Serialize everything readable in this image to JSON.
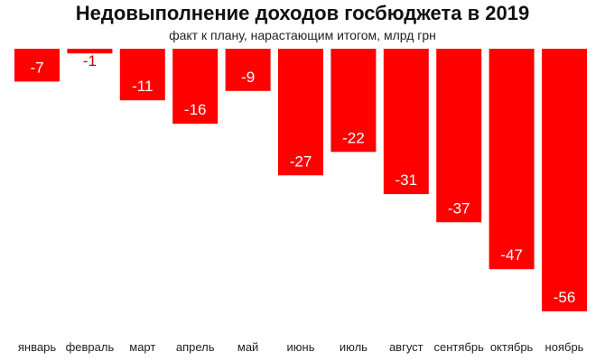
{
  "chart_data": {
    "type": "bar",
    "title": "Недовыполнение доходов госбюджета в 2019",
    "subtitle": "факт к плану, нарастающим итогом, млрд грн",
    "categories": [
      "январь",
      "февраль",
      "март",
      "апрель",
      "май",
      "июнь",
      "июль",
      "август",
      "сентябрь",
      "октябрь",
      "ноябрь"
    ],
    "values": [
      -7,
      -1,
      -11,
      -16,
      -9,
      -27,
      -22,
      -31,
      -37,
      -47,
      -56
    ],
    "ylim": [
      -56,
      0
    ],
    "grid": false,
    "bar_color": "#ff0000",
    "label_color": "#ffffff"
  }
}
